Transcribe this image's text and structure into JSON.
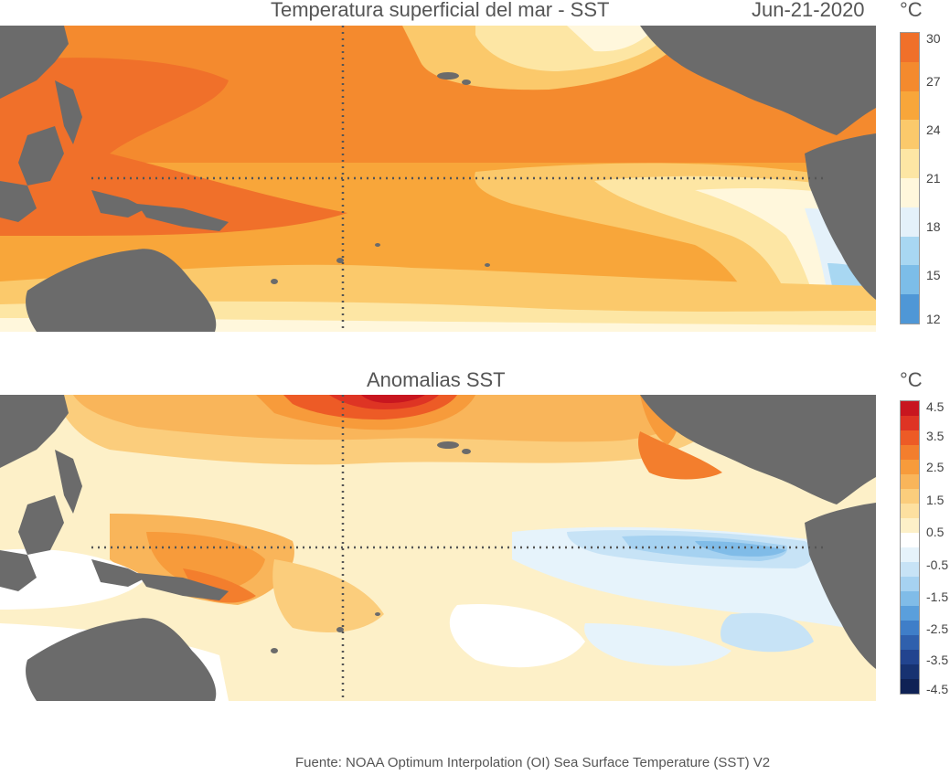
{
  "sst_panel": {
    "title": "Temperatura superficial del mar - SST",
    "date": "Jun-21-2020",
    "unit": "°C",
    "colorbar_ticks": [
      "30",
      "27",
      "24",
      "21",
      "18",
      "15",
      "12"
    ],
    "colors": [
      "#f0702a",
      "#f48a2e",
      "#f8a63a",
      "#fbc96b",
      "#fde6a4",
      "#fff7dc",
      "#e4f1fa",
      "#a8d7f2",
      "#7cbde8",
      "#4f97d6"
    ]
  },
  "anomaly_panel": {
    "title": "Anomalias SST",
    "unit": "°C",
    "colorbar_ticks": [
      "4.5",
      "3.5",
      "2.5",
      "1.5",
      "0.5",
      "-0.5",
      "-1.5",
      "-2.5",
      "-3.5",
      "-4.5"
    ],
    "colors": [
      "#c8161f",
      "#de3424",
      "#ed5b26",
      "#f37e2d",
      "#f79b3b",
      "#f9b55a",
      "#fbcd7c",
      "#fde0a0",
      "#fdf0c8",
      "#ffffff",
      "#e6f3fb",
      "#c7e3f6",
      "#a6d2f1",
      "#80bce8",
      "#5a9fdc",
      "#3f7ec8",
      "#2f60ad",
      "#22448f",
      "#173271",
      "#0f2255"
    ]
  },
  "map_colors": {
    "land": "#6b6b6b",
    "ocean_warm": "#f48a2e",
    "ocean_hot": "#f0702a"
  },
  "source": "Fuente: NOAA Optimum Interpolation (OI) Sea Surface Temperature (SST) V2"
}
